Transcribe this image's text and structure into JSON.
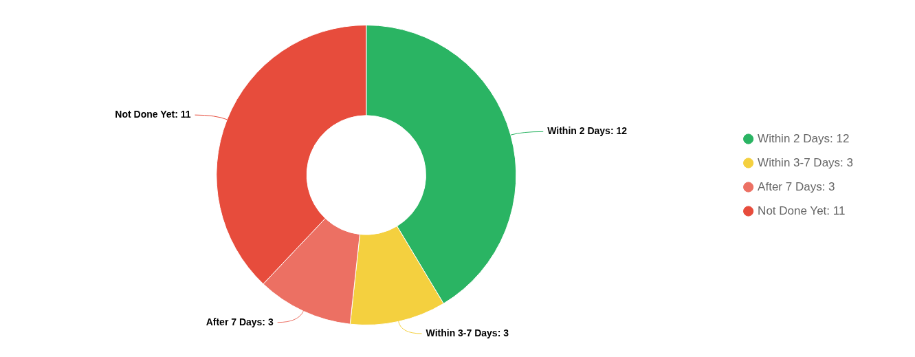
{
  "chart_data": {
    "type": "donut",
    "categories": [
      "Within 2 Days: 12",
      "Within 3-7 Days: 3",
      "After 7 Days: 3",
      "Not Done Yet: 11"
    ],
    "values": [
      12,
      3,
      3,
      11
    ],
    "colors": [
      "#2ab463",
      "#f4d03f",
      "#ec7063",
      "#e74c3c"
    ],
    "legend": "right"
  }
}
